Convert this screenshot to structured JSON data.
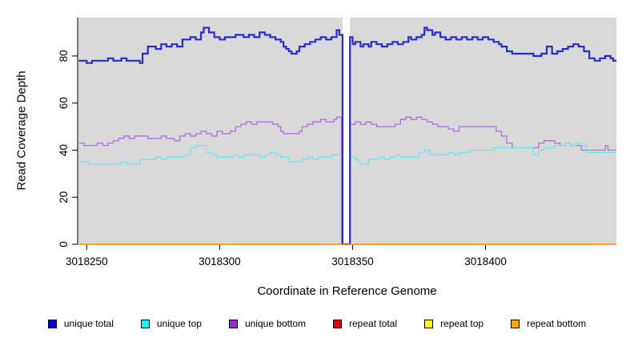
{
  "chart_data": {
    "type": "line",
    "step": true,
    "title": "",
    "xlabel": "Coordinate in Reference Genome",
    "ylabel": "Read Coverage Depth",
    "xlim": [
      3018246.6,
      3018449.2
    ],
    "ylim": [
      0,
      96.3
    ],
    "x_ticks": [
      3018250,
      3018300,
      3018350,
      3018400
    ],
    "y_ticks": [
      0,
      20,
      40,
      60,
      80
    ],
    "grid": false,
    "panel_bg": "#d9d9d9",
    "axis_color": "#000000",
    "gap_band": {
      "x_from": 3018346.2,
      "x_to": 3018349.0,
      "color": "#ffffff"
    },
    "legend_position": "bottom",
    "series": [
      {
        "name": "repeat total",
        "line_color": "#dd0000",
        "legend_color": "#ee0000",
        "line_width": 1.2,
        "segments": [
          [
            3018246.6,
            0
          ]
        ]
      },
      {
        "name": "repeat top",
        "line_color": "#f5e800",
        "legend_color": "#ffff00",
        "line_width": 1.2,
        "segments": [
          [
            3018246.6,
            0
          ]
        ]
      },
      {
        "name": "unique bottom",
        "line_color": "#ae6fe8",
        "legend_color": "#9b26d9",
        "line_width": 1.3,
        "segments": [
          [
            3018247,
            43
          ],
          [
            3018249,
            42
          ],
          [
            3018254,
            43
          ],
          [
            3018256,
            42
          ],
          [
            3018258,
            43
          ],
          [
            3018260,
            44
          ],
          [
            3018262,
            45
          ],
          [
            3018264,
            46
          ],
          [
            3018266,
            45
          ],
          [
            3018268,
            46
          ],
          [
            3018273,
            45
          ],
          [
            3018278,
            46
          ],
          [
            3018280,
            45
          ],
          [
            3018283,
            44
          ],
          [
            3018285,
            46
          ],
          [
            3018287,
            47
          ],
          [
            3018289,
            46
          ],
          [
            3018291,
            47
          ],
          [
            3018293,
            48
          ],
          [
            3018295,
            47
          ],
          [
            3018297,
            46
          ],
          [
            3018299,
            48
          ],
          [
            3018301,
            47
          ],
          [
            3018304,
            48
          ],
          [
            3018306,
            50
          ],
          [
            3018308,
            51
          ],
          [
            3018310,
            52
          ],
          [
            3018312,
            51
          ],
          [
            3018314,
            52
          ],
          [
            3018317,
            52
          ],
          [
            3018320,
            51
          ],
          [
            3018322,
            50
          ],
          [
            3018323,
            48
          ],
          [
            3018324,
            47
          ],
          [
            3018328,
            47
          ],
          [
            3018330,
            48
          ],
          [
            3018331,
            50
          ],
          [
            3018333,
            51
          ],
          [
            3018335,
            52
          ],
          [
            3018338,
            53
          ],
          [
            3018340,
            52
          ],
          [
            3018343,
            53
          ],
          [
            3018344,
            54
          ],
          [
            3018345.8,
            0
          ],
          [
            3018349,
            51
          ],
          [
            3018351,
            52
          ],
          [
            3018353,
            51
          ],
          [
            3018355,
            52
          ],
          [
            3018357,
            51
          ],
          [
            3018359,
            50
          ],
          [
            3018363,
            50
          ],
          [
            3018366,
            51
          ],
          [
            3018368,
            53
          ],
          [
            3018370,
            54
          ],
          [
            3018372,
            53
          ],
          [
            3018374,
            54
          ],
          [
            3018376,
            53
          ],
          [
            3018378,
            52
          ],
          [
            3018380,
            51
          ],
          [
            3018382,
            50
          ],
          [
            3018386,
            49
          ],
          [
            3018388,
            48
          ],
          [
            3018390,
            50
          ],
          [
            3018402,
            50
          ],
          [
            3018404,
            48
          ],
          [
            3018406,
            46
          ],
          [
            3018408,
            43
          ],
          [
            3018410,
            41
          ],
          [
            3018418,
            41
          ],
          [
            3018420,
            43
          ],
          [
            3018422,
            44
          ],
          [
            3018426,
            43
          ],
          [
            3018428,
            42
          ],
          [
            3018430,
            43
          ],
          [
            3018432,
            42
          ],
          [
            3018436,
            40
          ],
          [
            3018443,
            40
          ],
          [
            3018445,
            42
          ],
          [
            3018446,
            40
          ],
          [
            3018448,
            40
          ]
        ]
      },
      {
        "name": "unique top",
        "line_color": "#70e4ea",
        "legend_color": "#00ffff",
        "line_width": 1.3,
        "segments": [
          [
            3018247,
            35
          ],
          [
            3018251,
            34
          ],
          [
            3018263,
            35
          ],
          [
            3018265,
            34
          ],
          [
            3018270,
            36
          ],
          [
            3018276,
            37
          ],
          [
            3018278,
            36
          ],
          [
            3018280,
            37
          ],
          [
            3018287,
            38
          ],
          [
            3018289,
            41
          ],
          [
            3018291,
            42
          ],
          [
            3018295,
            39
          ],
          [
            3018297,
            38
          ],
          [
            3018299,
            37
          ],
          [
            3018305,
            38
          ],
          [
            3018307,
            37
          ],
          [
            3018309,
            38
          ],
          [
            3018315,
            37
          ],
          [
            3018317,
            38
          ],
          [
            3018319,
            39
          ],
          [
            3018321,
            38
          ],
          [
            3018323,
            37
          ],
          [
            3018326,
            35
          ],
          [
            3018331,
            36
          ],
          [
            3018333,
            37
          ],
          [
            3018335,
            36
          ],
          [
            3018337,
            37
          ],
          [
            3018342,
            38
          ],
          [
            3018346,
            0
          ],
          [
            3018349,
            37
          ],
          [
            3018351,
            36
          ],
          [
            3018352,
            35
          ],
          [
            3018353,
            34
          ],
          [
            3018356,
            36
          ],
          [
            3018360,
            37
          ],
          [
            3018362,
            36
          ],
          [
            3018364,
            37
          ],
          [
            3018366,
            38
          ],
          [
            3018368,
            37
          ],
          [
            3018373,
            37
          ],
          [
            3018375,
            39
          ],
          [
            3018377,
            40
          ],
          [
            3018379,
            38
          ],
          [
            3018384,
            38
          ],
          [
            3018386,
            39
          ],
          [
            3018388,
            38
          ],
          [
            3018390,
            39
          ],
          [
            3018394,
            40
          ],
          [
            3018400,
            40
          ],
          [
            3018403,
            41
          ],
          [
            3018417,
            41
          ],
          [
            3018418,
            38
          ],
          [
            3018420,
            40
          ],
          [
            3018422,
            41
          ],
          [
            3018426,
            42
          ],
          [
            3018430,
            43
          ],
          [
            3018432,
            42
          ],
          [
            3018434,
            43
          ],
          [
            3018436,
            42
          ],
          [
            3018438,
            39
          ],
          [
            3018448,
            39
          ]
        ]
      },
      {
        "name": "unique total",
        "line_color": "#2a2ad9",
        "legend_color": "#0000e6",
        "line_width": 2.2,
        "segments": [
          [
            3018247,
            78
          ],
          [
            3018250,
            77
          ],
          [
            3018252,
            78
          ],
          [
            3018256,
            78
          ],
          [
            3018258,
            79
          ],
          [
            3018260,
            78
          ],
          [
            3018263,
            79
          ],
          [
            3018265,
            78
          ],
          [
            3018268,
            78
          ],
          [
            3018270,
            77
          ],
          [
            3018271,
            81
          ],
          [
            3018273,
            84
          ],
          [
            3018276,
            83
          ],
          [
            3018278,
            85
          ],
          [
            3018280,
            84
          ],
          [
            3018282,
            85
          ],
          [
            3018284,
            84
          ],
          [
            3018286,
            87
          ],
          [
            3018289,
            88
          ],
          [
            3018291,
            87
          ],
          [
            3018293,
            90
          ],
          [
            3018294,
            92
          ],
          [
            3018296,
            90
          ],
          [
            3018298,
            88
          ],
          [
            3018300,
            87
          ],
          [
            3018302,
            88
          ],
          [
            3018306,
            89
          ],
          [
            3018309,
            88
          ],
          [
            3018311,
            89
          ],
          [
            3018313,
            88
          ],
          [
            3018315,
            90
          ],
          [
            3018317,
            89
          ],
          [
            3018319,
            88
          ],
          [
            3018321,
            87
          ],
          [
            3018323,
            86
          ],
          [
            3018324,
            84
          ],
          [
            3018325,
            83
          ],
          [
            3018326,
            82
          ],
          [
            3018327,
            81
          ],
          [
            3018329,
            82
          ],
          [
            3018330,
            84
          ],
          [
            3018332,
            85
          ],
          [
            3018334,
            86
          ],
          [
            3018336,
            87
          ],
          [
            3018338,
            88
          ],
          [
            3018340,
            87
          ],
          [
            3018342,
            88
          ],
          [
            3018344,
            91
          ],
          [
            3018345,
            89
          ],
          [
            3018346.2,
            0
          ],
          [
            3018349,
            88
          ],
          [
            3018350,
            85
          ],
          [
            3018351,
            86
          ],
          [
            3018353,
            84
          ],
          [
            3018354,
            85
          ],
          [
            3018356,
            84
          ],
          [
            3018357,
            86
          ],
          [
            3018359,
            85
          ],
          [
            3018361,
            84
          ],
          [
            3018363,
            85
          ],
          [
            3018365,
            86
          ],
          [
            3018367,
            85
          ],
          [
            3018369,
            86
          ],
          [
            3018371,
            88
          ],
          [
            3018372,
            87
          ],
          [
            3018374,
            88
          ],
          [
            3018376,
            89
          ],
          [
            3018377,
            92
          ],
          [
            3018378,
            91
          ],
          [
            3018380,
            89
          ],
          [
            3018381,
            90
          ],
          [
            3018383,
            88
          ],
          [
            3018385,
            87
          ],
          [
            3018387,
            88
          ],
          [
            3018389,
            87
          ],
          [
            3018391,
            88
          ],
          [
            3018393,
            87
          ],
          [
            3018395,
            88
          ],
          [
            3018397,
            87
          ],
          [
            3018399,
            88
          ],
          [
            3018401,
            87
          ],
          [
            3018403,
            86
          ],
          [
            3018405,
            85
          ],
          [
            3018406,
            84
          ],
          [
            3018408,
            82
          ],
          [
            3018410,
            81
          ],
          [
            3018414,
            81
          ],
          [
            3018418,
            80
          ],
          [
            3018421,
            81
          ],
          [
            3018423,
            84
          ],
          [
            3018425,
            81
          ],
          [
            3018427,
            82
          ],
          [
            3018429,
            83
          ],
          [
            3018431,
            84
          ],
          [
            3018433,
            85
          ],
          [
            3018435,
            84
          ],
          [
            3018437,
            82
          ],
          [
            3018439,
            79
          ],
          [
            3018441,
            78
          ],
          [
            3018443,
            79
          ],
          [
            3018445,
            80
          ],
          [
            3018447,
            79
          ],
          [
            3018448,
            78
          ]
        ]
      },
      {
        "name": "repeat bottom",
        "line_color": "#ff9814",
        "legend_color": "#ffa500",
        "line_width": 1.6,
        "segments": [
          [
            3018246.6,
            0
          ]
        ]
      }
    ]
  },
  "legend": {
    "items": [
      {
        "label": "unique total",
        "color": "#0000e6"
      },
      {
        "label": "unique top",
        "color": "#00ffff"
      },
      {
        "label": "unique bottom",
        "color": "#9b26d9"
      },
      {
        "label": "repeat total",
        "color": "#ee0000"
      },
      {
        "label": "repeat top",
        "color": "#ffff00"
      },
      {
        "label": "repeat bottom",
        "color": "#ffa500"
      }
    ]
  }
}
